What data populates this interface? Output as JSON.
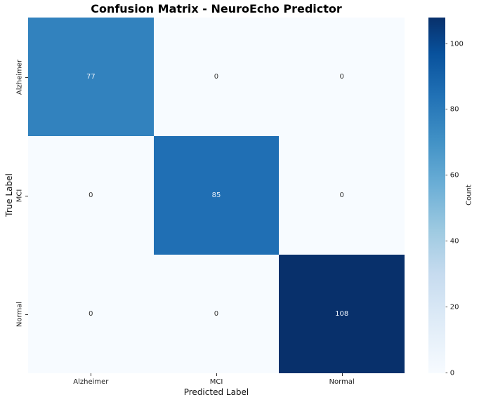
{
  "chart_data": {
    "type": "heatmap",
    "title": "Confusion Matrix - NeuroEcho Predictor",
    "xlabel": "Predicted Label",
    "ylabel": "True Label",
    "x_categories": [
      "Alzheimer",
      "MCI",
      "Normal"
    ],
    "y_categories": [
      "Alzheimer",
      "MCI",
      "Normal"
    ],
    "matrix": [
      [
        77,
        0,
        0
      ],
      [
        0,
        85,
        0
      ],
      [
        0,
        0,
        108
      ]
    ],
    "colormap": "Blues",
    "vmin": 0,
    "vmax": 108,
    "colorbar": {
      "label": "Count",
      "ticks": [
        0,
        20,
        40,
        60,
        80,
        100
      ]
    },
    "colors": {
      "zero": "#f7fbff",
      "77": "#2e7ebc",
      "85": "#1c68ae",
      "108": "#08306b"
    }
  }
}
